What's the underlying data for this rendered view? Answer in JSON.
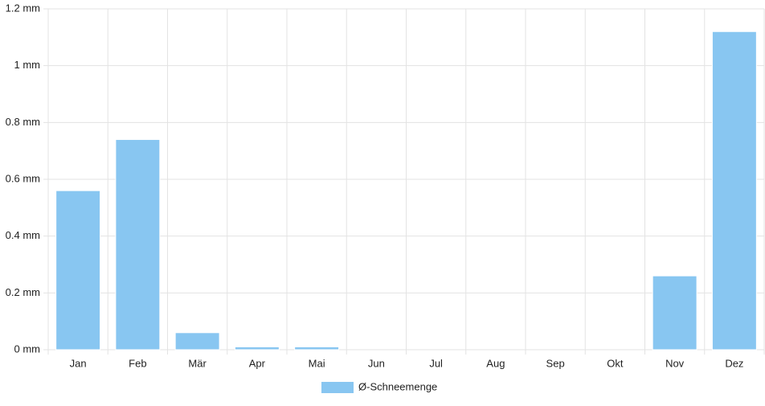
{
  "chart_data": {
    "type": "bar",
    "categories": [
      "Jan",
      "Feb",
      "Mär",
      "Apr",
      "Mai",
      "Jun",
      "Jul",
      "Aug",
      "Sep",
      "Okt",
      "Nov",
      "Dez"
    ],
    "series": [
      {
        "name": "Ø-Schneemenge",
        "color": "#88c6f1",
        "values": [
          0.56,
          0.74,
          0.06,
          0.01,
          0.01,
          0,
          0,
          0,
          0,
          0,
          0.26,
          1.12
        ]
      }
    ],
    "ylim": [
      0,
      1.2
    ],
    "yticks": [
      {
        "value": 0,
        "label": "0 mm"
      },
      {
        "value": 0.2,
        "label": "0.2 mm"
      },
      {
        "value": 0.4,
        "label": "0.4 mm"
      },
      {
        "value": 0.6,
        "label": "0.6 mm"
      },
      {
        "value": 0.8,
        "label": "0.8 mm"
      },
      {
        "value": 1,
        "label": "1 mm"
      },
      {
        "value": 1.2,
        "label": "1.2 mm"
      }
    ],
    "grid": true,
    "legend": "bottom"
  }
}
